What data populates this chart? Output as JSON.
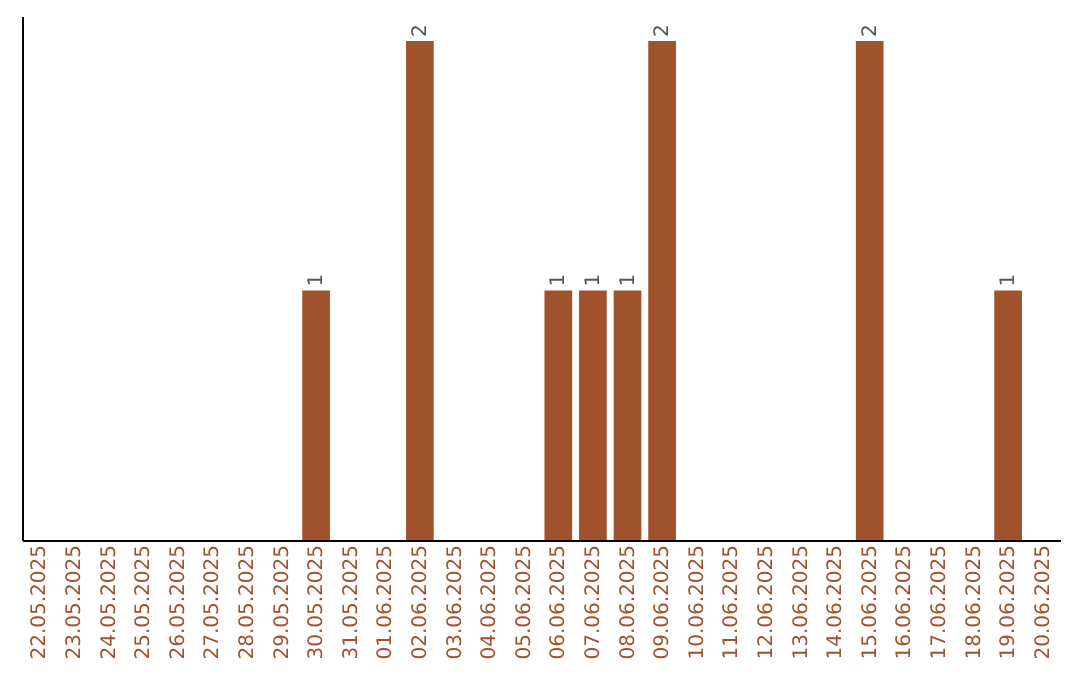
{
  "chart_data": {
    "type": "bar",
    "categories": [
      "22.05.2025",
      "23.05.2025",
      "24.05.2025",
      "25.05.2025",
      "26.05.2025",
      "27.05.2025",
      "28.05.2025",
      "29.05.2025",
      "30.05.2025",
      "31.05.2025",
      "01.06.2025",
      "02.06.2025",
      "03.06.2025",
      "04.06.2025",
      "05.06.2025",
      "06.06.2025",
      "07.06.2025",
      "08.06.2025",
      "09.06.2025",
      "10.06.2025",
      "11.06.2025",
      "12.06.2025",
      "13.06.2025",
      "14.06.2025",
      "15.06.2025",
      "16.06.2025",
      "17.06.2025",
      "18.06.2025",
      "19.06.2025",
      "20.06.2025"
    ],
    "values": [
      0,
      0,
      0,
      0,
      0,
      0,
      0,
      0,
      1,
      0,
      0,
      2,
      0,
      0,
      0,
      1,
      1,
      1,
      2,
      0,
      0,
      0,
      0,
      0,
      2,
      0,
      0,
      0,
      1,
      0
    ],
    "color": "#a0522d",
    "ylim": [
      0,
      2.1
    ],
    "value_labels": [
      null,
      null,
      null,
      null,
      null,
      null,
      null,
      null,
      "1",
      null,
      null,
      "2",
      null,
      null,
      null,
      "1",
      "1",
      "1",
      "2",
      null,
      null,
      null,
      null,
      null,
      "2",
      null,
      null,
      null,
      "1",
      null
    ],
    "tick_labels": "x",
    "grid": false
  }
}
